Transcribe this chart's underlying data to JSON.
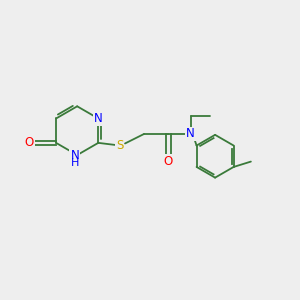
{
  "bg_color": "#eeeeee",
  "bond_color": "#3a7a3a",
  "atom_colors": {
    "N": "#0000ff",
    "O": "#ff0000",
    "S": "#ccaa00",
    "C": "#000000"
  },
  "font_size": 8.5,
  "fig_size": [
    3.0,
    3.0
  ],
  "dpi": 100
}
